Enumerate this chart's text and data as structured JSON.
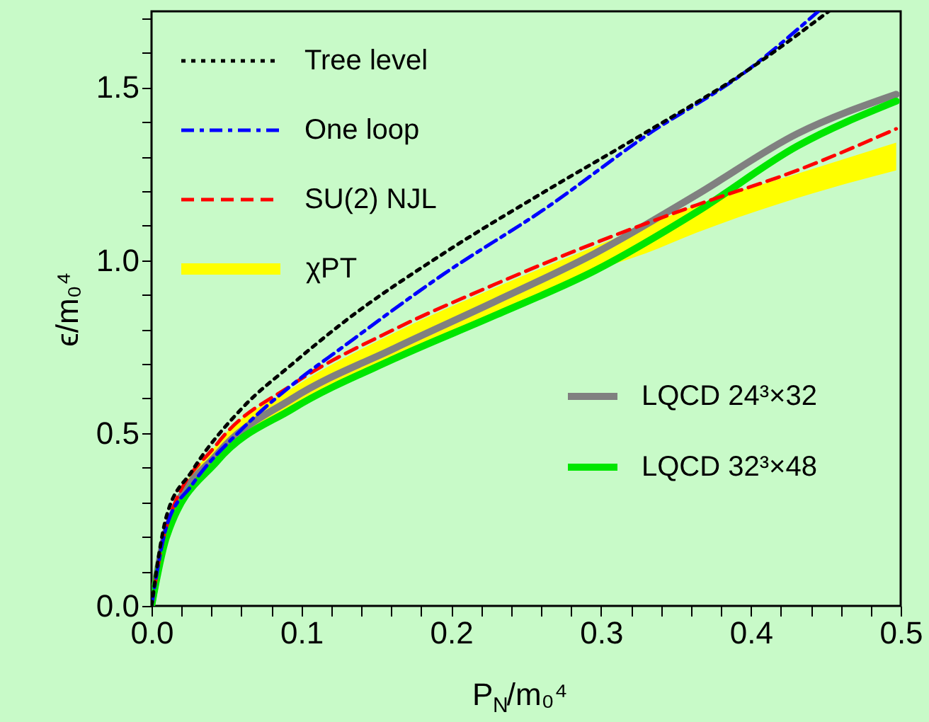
{
  "chart_data": {
    "type": "line",
    "xlabel": "P$_{N}$/m₀⁴",
    "ylabel": "ϵ/m₀⁴",
    "xlim": [
      0,
      0.5
    ],
    "ylim": [
      0,
      1.72
    ],
    "xticks": [
      {
        "value": 0,
        "label": "0.0"
      },
      {
        "value": 0.02,
        "label": null
      },
      {
        "value": 0.04,
        "label": null
      },
      {
        "value": 0.06,
        "label": null
      },
      {
        "value": 0.08,
        "label": null
      },
      0.1,
      {
        "value": 0.12,
        "label": null
      },
      {
        "value": 0.14,
        "label": null
      },
      {
        "value": 0.16,
        "label": null
      },
      {
        "value": 0.18,
        "label": null
      },
      0.2,
      {
        "value": 0.22,
        "label": null
      },
      {
        "value": 0.24,
        "label": null
      },
      {
        "value": 0.26,
        "label": null
      },
      {
        "value": 0.28,
        "label": null
      },
      0.3,
      {
        "value": 0.32,
        "label": null
      },
      {
        "value": 0.34,
        "label": null
      },
      {
        "value": 0.36,
        "label": null
      },
      {
        "value": 0.38,
        "label": null
      },
      0.4,
      {
        "value": 0.42,
        "label": null
      },
      {
        "value": 0.44,
        "label": null
      },
      {
        "value": 0.46,
        "label": null
      },
      {
        "value": 0.48,
        "label": null
      },
      0.5
    ],
    "yticks": [
      {
        "value": 0,
        "label": "0.0"
      },
      {
        "value": 0.1,
        "label": null
      },
      {
        "value": 0.2,
        "label": null
      },
      {
        "value": 0.3,
        "label": null
      },
      {
        "value": 0.4,
        "label": null
      },
      0.5,
      {
        "value": 0.6,
        "label": null
      },
      {
        "value": 0.7,
        "label": null
      },
      {
        "value": 0.8,
        "label": null
      },
      {
        "value": 0.9,
        "label": null
      },
      {
        "value": 1.0,
        "label": "1.0"
      },
      {
        "value": 1.1,
        "label": null
      },
      {
        "value": 1.2,
        "label": null
      },
      {
        "value": 1.3,
        "label": null
      },
      {
        "value": 1.4,
        "label": null
      },
      1.5,
      {
        "value": 1.6,
        "label": null
      },
      {
        "value": 1.7,
        "label": null
      }
    ],
    "grid": false,
    "legend": "top left",
    "series": [
      {
        "name": "Tree level",
        "color": "#000000",
        "line_style": "dotted",
        "x": [
          0,
          0.01,
          0.027,
          0.06,
          0.094,
          0.128,
          0.195,
          0.263,
          0.33,
          0.398,
          0.452
        ],
        "values": [
          0,
          0.26,
          0.39,
          0.57,
          0.7,
          0.82,
          1.02,
          1.2,
          1.37,
          1.55,
          1.72
        ]
      },
      {
        "name": "One loop",
        "color": "#0000ff",
        "line_style": "dashdot",
        "x": [
          0,
          0.01,
          0.027,
          0.06,
          0.094,
          0.128,
          0.195,
          0.263,
          0.33,
          0.398,
          0.445
        ],
        "values": [
          0,
          0.23,
          0.35,
          0.51,
          0.64,
          0.75,
          0.96,
          1.15,
          1.36,
          1.55,
          1.72
        ]
      },
      {
        "name": "SU(2) NJL",
        "color": "#ff0000",
        "line_style": "dashed",
        "x": [
          0,
          0.01,
          0.044,
          0.094,
          0.162,
          0.229,
          0.296,
          0.364,
          0.431,
          0.497
        ],
        "values": [
          0,
          0.23,
          0.47,
          0.64,
          0.8,
          0.93,
          1.05,
          1.16,
          1.26,
          1.38
        ]
      },
      {
        "name": "χPT",
        "color": "#ffff00",
        "type": "line",
        "line_style": "solid",
        "x": [
          0,
          0.01,
          0.044,
          0.094,
          0.162,
          0.229,
          0.296,
          0.33,
          0.364,
          0.431,
          0.497
        ],
        "values": [
          null,
          null,
          null,
          null,
          null,
          null,
          null,
          null,
          null,
          null,
          null
        ],
        "lower": [
          0,
          0.2,
          0.42,
          0.58,
          0.72,
          0.84,
          0.97,
          1.02,
          1.08,
          1.18,
          1.26
        ],
        "upper": [
          0,
          0.22,
          0.47,
          0.63,
          0.79,
          0.92,
          1.04,
          1.1,
          1.16,
          1.25,
          1.34
        ]
      },
      {
        "name": "LQCD 24³×32",
        "color": "#808080",
        "line_style": "solid",
        "x": [
          0,
          0.01,
          0.044,
          0.094,
          0.162,
          0.229,
          0.296,
          0.364,
          0.431,
          0.497
        ],
        "values": [
          0,
          0.22,
          0.44,
          0.6,
          0.745,
          0.88,
          1.02,
          1.19,
          1.366,
          1.48
        ]
      },
      {
        "name": "LQCD 32³×48",
        "color": "#00e600",
        "line_style": "solid",
        "x": [
          0,
          0.01,
          0.044,
          0.094,
          0.162,
          0.229,
          0.296,
          0.364,
          0.431,
          0.497
        ],
        "values": [
          0,
          0.2,
          0.42,
          0.57,
          0.715,
          0.84,
          0.97,
          1.14,
          1.33,
          1.46
        ]
      }
    ]
  }
}
